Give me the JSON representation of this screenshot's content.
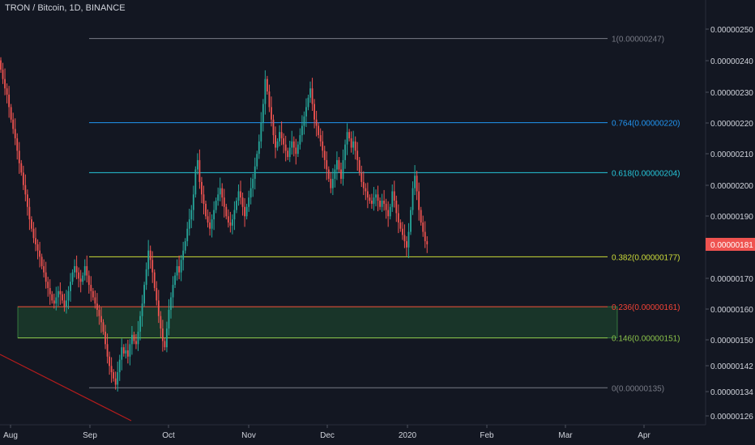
{
  "header": {
    "title": "TRON / Bitcoin, 1D, BINANCE"
  },
  "colors": {
    "background": "#131722",
    "up": "#26a69a",
    "down": "#ef5350",
    "axis_text": "#d1d4dc",
    "price_badge": "#ef5350"
  },
  "chart_data": {
    "type": "candlestick",
    "title": "TRON / Bitcoin, 1D, BINANCE",
    "xlabel": "",
    "ylabel": "",
    "x_ticks": [
      "Aug",
      "Sep",
      "Oct",
      "Nov",
      "Dec",
      "2020",
      "Feb",
      "Mar",
      "Apr"
    ],
    "y_ticks": [
      "0.00000250",
      "0.00000240",
      "0.00000230",
      "0.00000220",
      "0.00000210",
      "0.00000200",
      "0.00000190",
      "0.00000170",
      "0.00000160",
      "0.00000150",
      "0.00000142",
      "0.00000134",
      "0.00000126"
    ],
    "ylim": [
      1.24e-06,
      2.56e-06
    ],
    "last_price": "0.00000181",
    "fib_levels": [
      {
        "ratio": "1",
        "label": "1(0.00000247)",
        "value": 2.47e-06,
        "color": "#787b86"
      },
      {
        "ratio": "0.764",
        "label": "0.764(0.00000220)",
        "value": 2.2e-06,
        "color": "#2196f3"
      },
      {
        "ratio": "0.618",
        "label": "0.618(0.00000204)",
        "value": 2.04e-06,
        "color": "#26c6da"
      },
      {
        "ratio": "0.382",
        "label": "0.382(0.00000177)",
        "value": 1.77e-06,
        "color": "#cddc39"
      },
      {
        "ratio": "0.236",
        "label": "0.236(0.00000161)",
        "value": 1.61e-06,
        "color": "#f44336"
      },
      {
        "ratio": "0.146",
        "label": "0.146(0.00000151)",
        "value": 1.51e-06,
        "color": "#8bc34a"
      },
      {
        "ratio": "0",
        "label": "0(0.00000135)",
        "value": 1.35e-06,
        "color": "#787b86"
      }
    ],
    "zone": {
      "top": 1.61e-06,
      "bottom": 1.51e-06,
      "color": "#1b3b2a"
    },
    "candles_close": [
      2.37,
      2.34,
      2.31,
      2.29,
      2.25,
      2.21,
      2.18,
      2.15,
      2.11,
      2.07,
      2.04,
      2.0,
      1.97,
      1.93,
      1.89,
      1.86,
      1.83,
      1.81,
      1.79,
      1.77,
      1.74,
      1.72,
      1.69,
      1.67,
      1.65,
      1.63,
      1.62,
      1.64,
      1.66,
      1.65,
      1.63,
      1.61,
      1.63,
      1.66,
      1.69,
      1.72,
      1.74,
      1.72,
      1.7,
      1.69,
      1.71,
      1.74,
      1.71,
      1.68,
      1.66,
      1.64,
      1.62,
      1.6,
      1.58,
      1.56,
      1.53,
      1.49,
      1.45,
      1.42,
      1.4,
      1.38,
      1.36,
      1.4,
      1.44,
      1.48,
      1.46,
      1.47,
      1.45,
      1.49,
      1.52,
      1.5,
      1.49,
      1.53,
      1.58,
      1.62,
      1.68,
      1.73,
      1.79,
      1.76,
      1.72,
      1.67,
      1.63,
      1.58,
      1.54,
      1.5,
      1.48,
      1.54,
      1.6,
      1.64,
      1.68,
      1.71,
      1.74,
      1.72,
      1.76,
      1.79,
      1.82,
      1.86,
      1.89,
      1.92,
      1.97,
      2.05,
      2.08,
      2.01,
      1.97,
      1.94,
      1.9,
      1.88,
      1.86,
      1.89,
      1.92,
      1.95,
      1.97,
      1.99,
      1.96,
      1.93,
      1.9,
      1.88,
      1.87,
      1.89,
      1.92,
      1.95,
      1.98,
      1.96,
      1.93,
      1.9,
      1.93,
      1.96,
      1.99,
      2.02,
      2.06,
      2.1,
      2.14,
      2.2,
      2.26,
      2.34,
      2.3,
      2.25,
      2.21,
      2.16,
      2.12,
      2.14,
      2.17,
      2.15,
      2.13,
      2.11,
      2.09,
      2.12,
      2.14,
      2.12,
      2.1,
      2.13,
      2.16,
      2.19,
      2.22,
      2.25,
      2.28,
      2.31,
      2.26,
      2.21,
      2.19,
      2.16,
      2.14,
      2.11,
      2.08,
      2.05,
      2.02,
      1.99,
      2.02,
      2.05,
      2.08,
      2.05,
      2.02,
      2.08,
      2.13,
      2.17,
      2.15,
      2.12,
      2.14,
      2.11,
      2.08,
      2.04,
      2.01,
      1.99,
      1.98,
      1.96,
      1.95,
      1.94,
      1.96,
      1.97,
      1.95,
      1.93,
      1.95,
      1.94,
      1.92,
      1.9,
      1.93,
      1.98,
      1.95,
      1.91,
      1.88,
      1.86,
      1.84,
      1.82,
      1.8,
      1.85,
      1.92,
      1.99,
      2.03,
      1.98,
      1.92,
      1.88,
      1.85,
      1.82,
      1.81
    ]
  }
}
